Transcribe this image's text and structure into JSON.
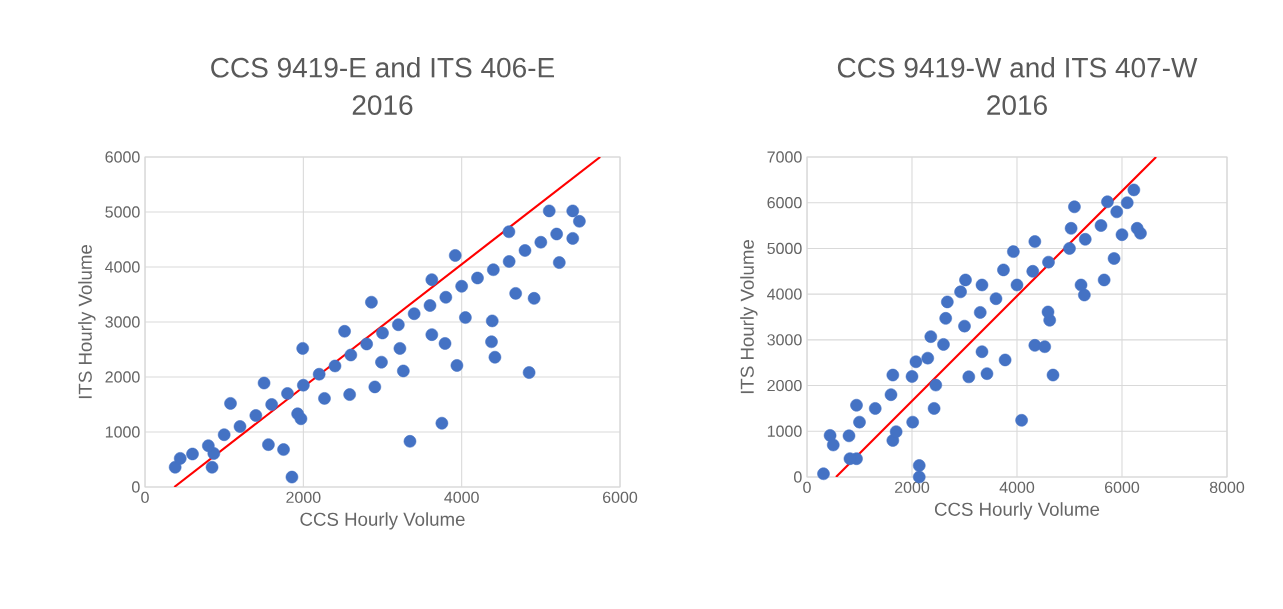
{
  "chart_data": [
    {
      "type": "scatter",
      "title": "CCS 9419-E and ITS 406-E",
      "subtitle": "2016",
      "xlabel": "CCS Hourly Volume",
      "ylabel": "ITS Hourly Volume",
      "xlim": [
        0,
        6000
      ],
      "ylim": [
        0,
        6000
      ],
      "xticks": [
        0,
        2000,
        4000,
        6000
      ],
      "yticks": [
        0,
        1000,
        2000,
        3000,
        4000,
        5000,
        6000
      ],
      "grid": true,
      "series": [
        {
          "color": "#4472c4",
          "marker": "circle",
          "x": [
            381,
            847,
            1559,
            1750,
            1856,
            1970,
            2267,
            2585,
            2903,
            3263,
            3347,
            3750,
            3940,
            4377,
            4420,
            4852,
            4915,
            1992,
            4386,
            3790,
            3220,
            445,
            1080,
            1504,
            2521,
            2860,
            3623,
            3919,
            4597,
            5106,
            5403,
            5487,
            869,
            1928,
            2987,
            3623,
            4047,
            4682,
            5233,
            5403,
            600,
            800,
            1000,
            1200,
            1400,
            1600,
            1800,
            2000,
            2200,
            2400,
            2600,
            2800,
            3000,
            3200,
            3400,
            3600,
            3800,
            4000,
            4200,
            4400,
            4600,
            4800,
            5000,
            5200
          ],
          "values": [
            360,
            360,
            770,
            680,
            180,
            1240,
            1610,
            1680,
            1820,
            2110,
            830,
            1160,
            2210,
            2640,
            2360,
            2080,
            3430,
            2520,
            3020,
            2610,
            2520,
            520,
            1520,
            1890,
            2830,
            3360,
            3770,
            4210,
            4640,
            5020,
            5020,
            4830,
            610,
            1330,
            2270,
            2770,
            3080,
            3520,
            4080,
            4520,
            600,
            750,
            950,
            1100,
            1300,
            1500,
            1700,
            1850,
            2050,
            2200,
            2400,
            2600,
            2800,
            2950,
            3150,
            3300,
            3450,
            3650,
            3800,
            3950,
            4100,
            4300,
            4450,
            4600
          ]
        },
        {
          "type": "line",
          "color": "#ff0000",
          "marker": "none",
          "line_style": "solid",
          "x": [
            370,
            5750
          ],
          "values": [
            0,
            6000
          ]
        }
      ]
    },
    {
      "type": "scatter",
      "title": "CCS 9419-W and ITS 407-W",
      "subtitle": "2016",
      "xlabel": "CCS Hourly Volume",
      "ylabel": "ITS Hourly Volume",
      "xlim": [
        0,
        8000
      ],
      "ylim": [
        0,
        7000
      ],
      "xticks": [
        0,
        2000,
        4000,
        6000,
        8000
      ],
      "yticks": [
        0,
        1000,
        2000,
        3000,
        4000,
        5000,
        6000,
        7000
      ],
      "grid": true,
      "series": [
        {
          "color": "#4472c4",
          "marker": "circle",
          "x": [
            314,
            2138,
            2138,
            4088,
            4686,
            3082,
            3428,
            3774,
            4340,
            4528,
            4623,
            5283,
            5660,
            5094,
            2673,
            3019,
            2925,
            2358,
            3742,
            3931,
            2421,
            2013,
            1635,
            943,
            6352,
            440,
            943,
            1635,
            2075,
            2642,
            3333,
            4340,
            5031,
            5723,
            6226,
            818,
            1698,
            2453,
            3333,
            4591,
            5220,
            5849,
            6289,
            500,
            800,
            1000,
            1300,
            1600,
            2000,
            2300,
            2600,
            3000,
            3300,
            3600,
            4000,
            4300,
            4600,
            5000,
            5300,
            5600,
            5900,
            6100,
            6000
          ],
          "values": [
            70,
            0,
            250,
            1240,
            2230,
            2190,
            2260,
            2560,
            2880,
            2850,
            3430,
            3980,
            4310,
            5910,
            3830,
            4310,
            4050,
            3070,
            4530,
            4930,
            1500,
            1200,
            800,
            400,
            5330,
            910,
            1570,
            2230,
            2520,
            3470,
            4200,
            5150,
            5440,
            6020,
            6280,
            400,
            990,
            2010,
            2740,
            3610,
            4200,
            4780,
            5440,
            700,
            900,
            1200,
            1500,
            1800,
            2200,
            2600,
            2900,
            3300,
            3600,
            3900,
            4200,
            4500,
            4700,
            5000,
            5200,
            5500,
            5800,
            6000,
            5300
          ]
        },
        {
          "type": "line",
          "color": "#ff0000",
          "marker": "none",
          "line_style": "solid",
          "x": [
            553,
            6650
          ],
          "values": [
            0,
            7000
          ]
        }
      ]
    }
  ]
}
